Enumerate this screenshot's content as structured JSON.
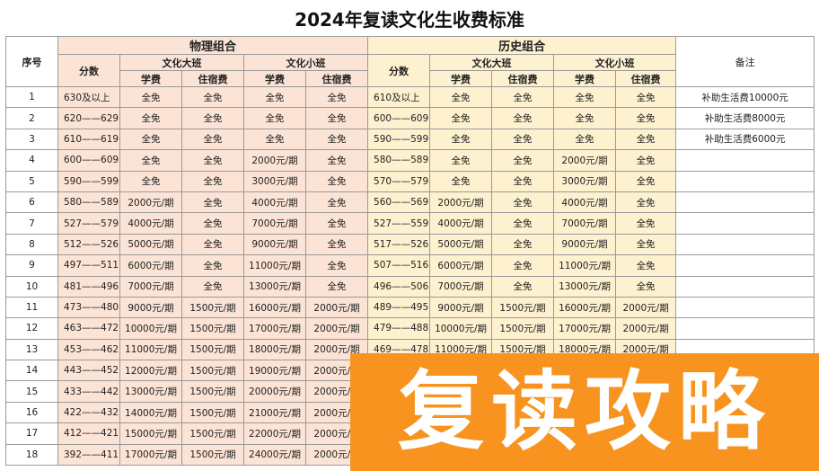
{
  "header": {
    "title": "2024年复读文化生收费标准",
    "seq": "序号",
    "remark": "备注",
    "groups": [
      {
        "name": "物理组合",
        "score": "分数",
        "big": "文化大班",
        "small": "文化小班",
        "fees": [
          "学费",
          "住宿费",
          "学费",
          "住宿费"
        ]
      },
      {
        "name": "历史组合",
        "score": "分数",
        "big": "文化大班",
        "small": "文化小班",
        "fees": [
          "学费",
          "住宿费",
          "学费",
          "住宿费"
        ]
      }
    ]
  },
  "rows": [
    {
      "no": "1",
      "physics": [
        "630及以上",
        "全免",
        "全免",
        "全免",
        "全免"
      ],
      "history": [
        "610及以上",
        "全免",
        "全免",
        "全免",
        "全免"
      ],
      "remark": "补助生活费10000元"
    },
    {
      "no": "2",
      "physics": [
        "620——629",
        "全免",
        "全免",
        "全免",
        "全免"
      ],
      "history": [
        "600——609",
        "全免",
        "全免",
        "全免",
        "全免"
      ],
      "remark": "补助生活费8000元"
    },
    {
      "no": "3",
      "physics": [
        "610——619",
        "全免",
        "全免",
        "全免",
        "全免"
      ],
      "history": [
        "590——599",
        "全免",
        "全免",
        "全免",
        "全免"
      ],
      "remark": "补助生活费6000元"
    },
    {
      "no": "4",
      "physics": [
        "600——609",
        "全免",
        "全免",
        "2000元/期",
        "全免"
      ],
      "history": [
        "580——589",
        "全免",
        "全免",
        "2000元/期",
        "全免"
      ]
    },
    {
      "no": "5",
      "physics": [
        "590——599",
        "全免",
        "全免",
        "3000元/期",
        "全免"
      ],
      "history": [
        "570——579",
        "全免",
        "全免",
        "3000元/期",
        "全免"
      ]
    },
    {
      "no": "6",
      "physics": [
        "580——589",
        "2000元/期",
        "全免",
        "4000元/期",
        "全免"
      ],
      "history": [
        "560——569",
        "2000元/期",
        "全免",
        "4000元/期",
        "全免"
      ]
    },
    {
      "no": "7",
      "physics": [
        "527——579",
        "4000元/期",
        "全免",
        "7000元/期",
        "全免"
      ],
      "history": [
        "527——559",
        "4000元/期",
        "全免",
        "7000元/期",
        "全免"
      ]
    },
    {
      "no": "8",
      "physics": [
        "512——526",
        "5000元/期",
        "全免",
        "9000元/期",
        "全免"
      ],
      "history": [
        "517——526",
        "5000元/期",
        "全免",
        "9000元/期",
        "全免"
      ]
    },
    {
      "no": "9",
      "physics": [
        "497——511",
        "6000元/期",
        "全免",
        "11000元/期",
        "全免"
      ],
      "history": [
        "507——516",
        "6000元/期",
        "全免",
        "11000元/期",
        "全免"
      ]
    },
    {
      "no": "10",
      "physics": [
        "481——496",
        "7000元/期",
        "全免",
        "13000元/期",
        "全免"
      ],
      "history": [
        "496——506",
        "7000元/期",
        "全免",
        "13000元/期",
        "全免"
      ]
    },
    {
      "no": "11",
      "physics": [
        "473——480",
        "9000元/期",
        "1500元/期",
        "16000元/期",
        "2000元/期"
      ],
      "history": [
        "489——495",
        "9000元/期",
        "1500元/期",
        "16000元/期",
        "2000元/期"
      ]
    },
    {
      "no": "12",
      "physics": [
        "463——472",
        "10000元/期",
        "1500元/期",
        "17000元/期",
        "2000元/期"
      ],
      "history": [
        "479——488",
        "10000元/期",
        "1500元/期",
        "17000元/期",
        "2000元/期"
      ]
    },
    {
      "no": "13",
      "physics": [
        "453——462",
        "11000元/期",
        "1500元/期",
        "18000元/期",
        "2000元/期"
      ],
      "history": [
        "469——478",
        "11000元/期",
        "1500元/期",
        "18000元/期",
        "2000元/期"
      ]
    },
    {
      "no": "14",
      "physics": [
        "443——452",
        "12000元/期",
        "1500元/期",
        "19000元/期",
        "2000元/期"
      ]
    },
    {
      "no": "15",
      "physics": [
        "433——442",
        "13000元/期",
        "1500元/期",
        "20000元/期",
        "2000元/期"
      ]
    },
    {
      "no": "16",
      "physics": [
        "422——432",
        "14000元/期",
        "1500元/期",
        "21000元/期",
        "2000元/期"
      ]
    },
    {
      "no": "17",
      "physics": [
        "412——421",
        "15000元/期",
        "1500元/期",
        "22000元/期",
        "2000元/期"
      ]
    },
    {
      "no": "18",
      "physics": [
        "392——411",
        "17000元/期",
        "1500元/期",
        "24000元/期",
        "2000元/期"
      ]
    }
  ],
  "banner": "复读攻略"
}
